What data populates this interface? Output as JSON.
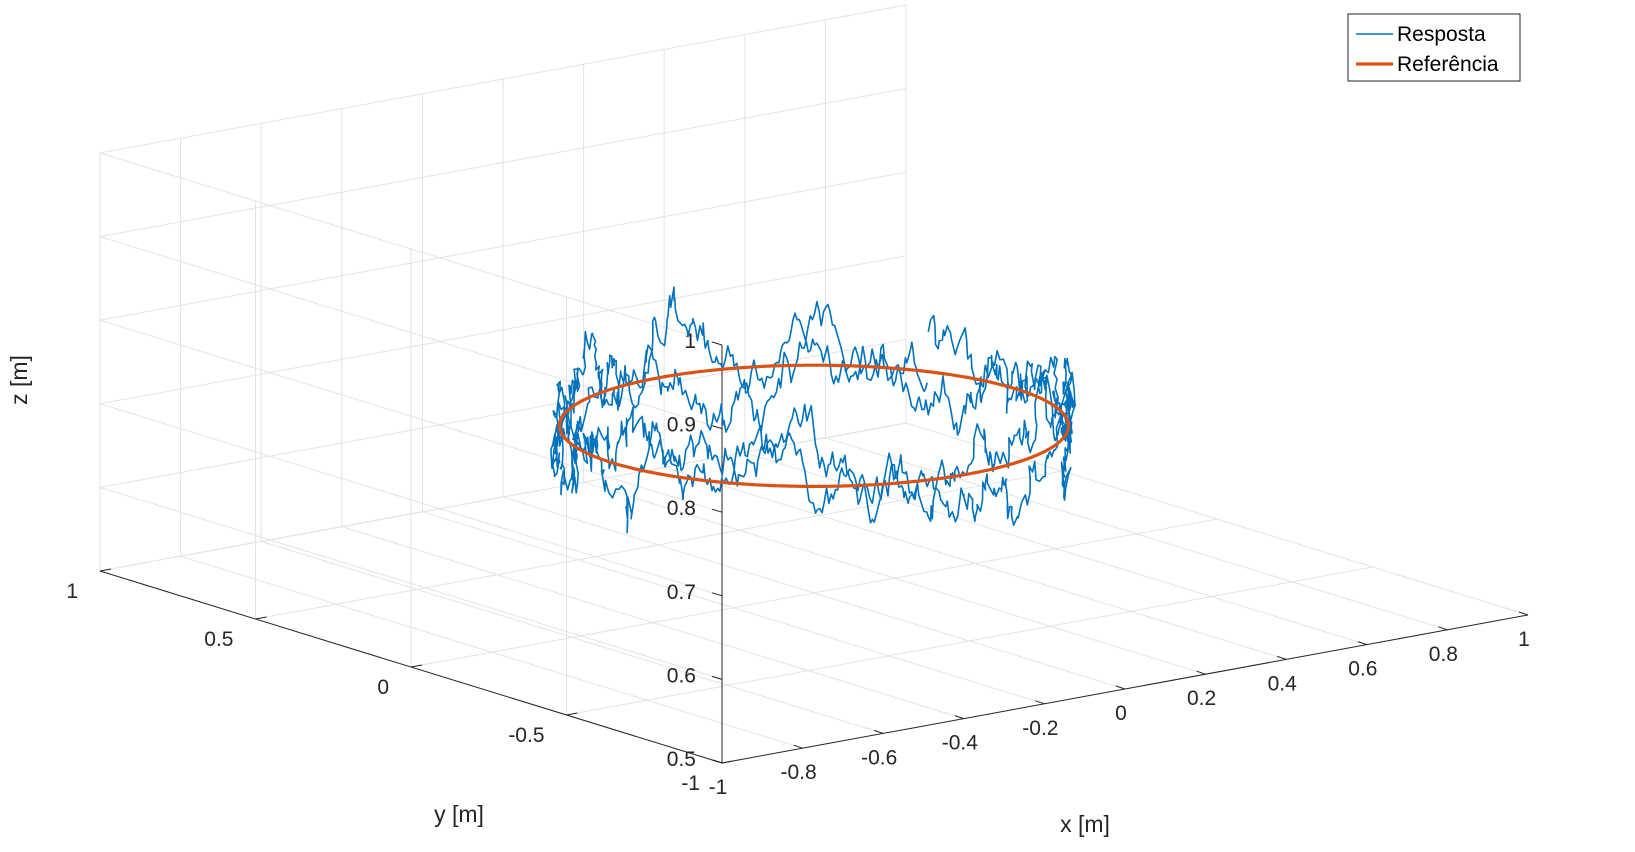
{
  "chart_data": {
    "type": "line",
    "projection": "3d",
    "xlabel": "x [m]",
    "ylabel": "y [m]",
    "zlabel": "z [m]",
    "xlim": [
      -1,
      1
    ],
    "ylim": [
      -1,
      1
    ],
    "zlim": [
      0.5,
      1
    ],
    "x_ticks": [
      -1,
      -0.8,
      -0.6,
      -0.4,
      -0.2,
      0,
      0.2,
      0.4,
      0.6,
      0.8,
      1
    ],
    "y_ticks": [
      -1,
      -0.5,
      0,
      0.5,
      1
    ],
    "z_ticks": [
      0.5,
      0.6,
      0.7,
      0.8,
      0.9,
      1
    ],
    "x_tick_labels": [
      "-1",
      "-0.8",
      "-0.6",
      "-0.4",
      "-0.2",
      "0",
      "0.2",
      "0.4",
      "0.6",
      "0.8",
      "1"
    ],
    "y_tick_labels": [
      "-1",
      "-0.5",
      "0",
      "0.5",
      "1"
    ],
    "z_tick_labels": [
      "0.5",
      "0.6",
      "0.7",
      "0.8",
      "0.9",
      "1"
    ],
    "grid": true,
    "legend_position": "top-right",
    "series": [
      {
        "name": "Resposta",
        "color": "#0072BD",
        "kind": "noisy-circle",
        "radius": 0.5,
        "center": [
          0,
          0
        ],
        "z_center": 0.7,
        "z_noise_amplitude": 0.05,
        "turns": 2
      },
      {
        "name": "Referência",
        "color": "#D95319",
        "kind": "circle",
        "radius": 0.5,
        "center": [
          0,
          0
        ],
        "z": 0.7
      }
    ]
  }
}
